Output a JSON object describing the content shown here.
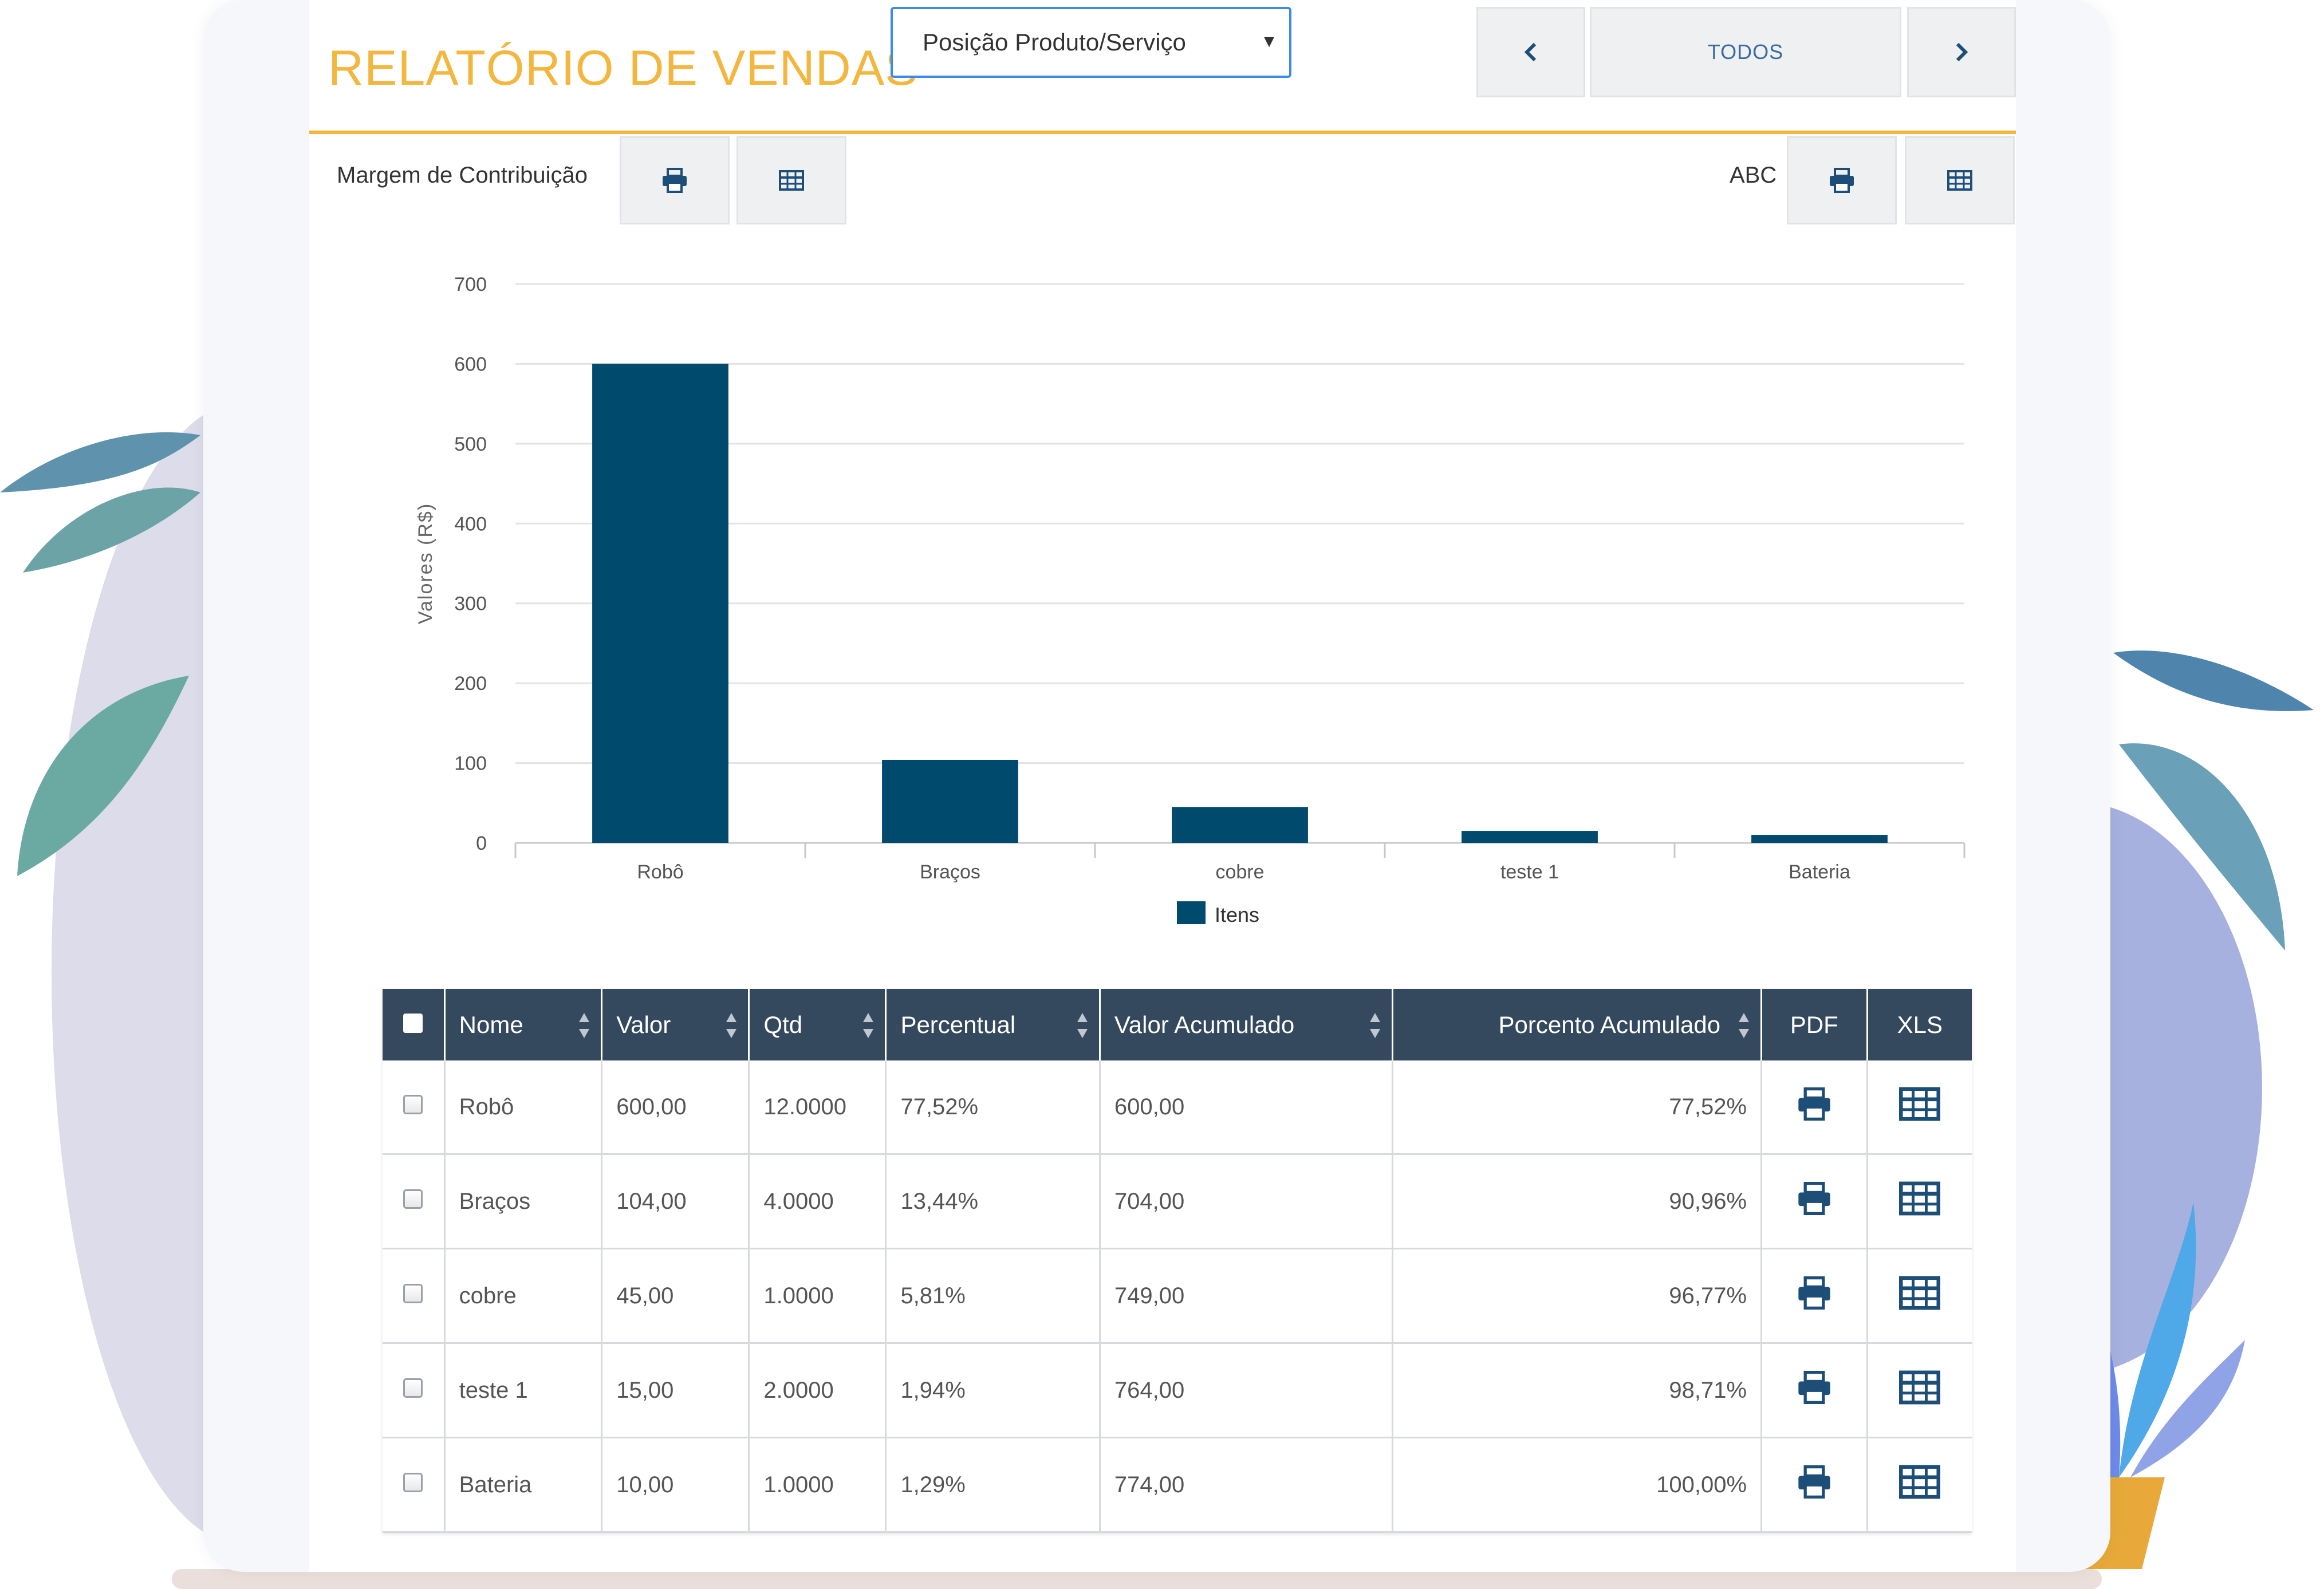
{
  "header": {
    "title": "RELATÓRIO DE VENDAS",
    "report_select": {
      "selected": "Posição Produto/Serviço"
    },
    "pager": {
      "prev_icon": "chevron-left-icon",
      "current_label": "TODOS",
      "next_icon": "chevron-right-icon"
    }
  },
  "left_tools": {
    "label": "Margem de Contribuição"
  },
  "right_tools": {
    "label": "ABC"
  },
  "colors": {
    "accent": "#f3b73f",
    "bar": "#004a6e",
    "table_header": "#34495e",
    "icon": "#1d4e78"
  },
  "chart_data": {
    "type": "bar",
    "categories": [
      "Robô",
      "Braços",
      "cobre",
      "teste 1",
      "Bateria"
    ],
    "series": [
      {
        "name": "Itens",
        "values": [
          600,
          104,
          45,
          15,
          10
        ]
      }
    ],
    "ylabel": "Valores (R$)",
    "ylim": [
      0,
      700
    ],
    "yticks": [
      0,
      100,
      200,
      300,
      400,
      500,
      600,
      700
    ],
    "grid": true,
    "legend": "bottom-center"
  },
  "table": {
    "columns": [
      "Nome",
      "Valor",
      "Qtd",
      "Percentual",
      "Valor Acumulado",
      "Porcento Acumulado",
      "PDF",
      "XLS"
    ],
    "rows": [
      {
        "nome": "Robô",
        "valor": "600,00",
        "qtd": "12.0000",
        "percentual": "77,52%",
        "valor_acumulado": "600,00",
        "porcento_acumulado": "77,52%"
      },
      {
        "nome": "Braços",
        "valor": "104,00",
        "qtd": "4.0000",
        "percentual": "13,44%",
        "valor_acumulado": "704,00",
        "porcento_acumulado": "90,96%"
      },
      {
        "nome": "cobre",
        "valor": "45,00",
        "qtd": "1.0000",
        "percentual": "5,81%",
        "valor_acumulado": "749,00",
        "porcento_acumulado": "96,77%"
      },
      {
        "nome": "teste 1",
        "valor": "15,00",
        "qtd": "2.0000",
        "percentual": "1,94%",
        "valor_acumulado": "764,00",
        "porcento_acumulado": "98,71%"
      },
      {
        "nome": "Bateria",
        "valor": "10,00",
        "qtd": "1.0000",
        "percentual": "1,29%",
        "valor_acumulado": "774,00",
        "porcento_acumulado": "100,00%"
      }
    ],
    "row_icons": {
      "pdf": "printer-icon",
      "xls": "table-grid-icon"
    }
  }
}
